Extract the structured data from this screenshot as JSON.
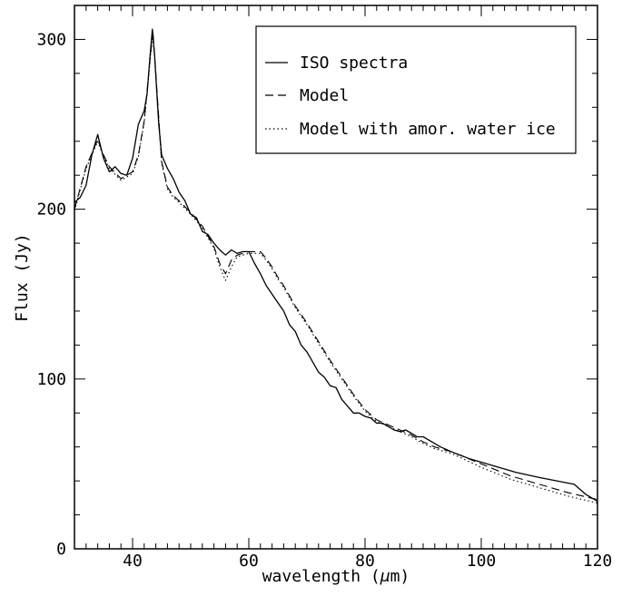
{
  "chart_data": {
    "type": "line",
    "title": "",
    "xlabel_text": "wavelength (",
    "xlabel_symbol": "μ",
    "xlabel_unit": "m)",
    "ylabel": "Flux (Jy)",
    "xlim": [
      30,
      120
    ],
    "ylim": [
      0,
      320
    ],
    "x_ticks": [
      "40",
      "60",
      "80",
      "100",
      "120"
    ],
    "y_ticks": [
      "0",
      "100",
      "200",
      "300"
    ],
    "grid": false,
    "legend_position": "top-right",
    "series": [
      {
        "name": "ISO spectra",
        "style": "solid",
        "x": [
          30,
          31,
          32,
          33,
          34,
          35,
          36,
          37,
          38,
          39,
          40,
          41,
          42,
          42.5,
          43,
          43.4,
          43.8,
          44.5,
          45,
          46,
          47,
          48,
          49,
          50,
          51,
          52,
          53,
          54,
          55,
          56,
          57,
          58,
          59,
          60,
          61,
          62,
          63,
          64,
          65,
          66,
          67,
          68,
          69,
          70,
          71,
          72,
          73,
          74,
          75,
          76,
          77,
          78,
          79,
          80,
          81,
          82,
          83,
          84,
          85,
          86,
          87,
          88,
          89,
          90,
          91,
          92,
          93,
          95,
          98,
          100,
          103,
          106,
          110,
          113,
          116,
          117,
          118,
          120
        ],
        "y": [
          204,
          207,
          214,
          232,
          244,
          230,
          222,
          225,
          221,
          220,
          230,
          250,
          258,
          268,
          290,
          306,
          290,
          250,
          232,
          224,
          218,
          210,
          205,
          197,
          195,
          187,
          185,
          180,
          176,
          173,
          176,
          174,
          175,
          175,
          168,
          162,
          155,
          150,
          145,
          140,
          132,
          128,
          120,
          116,
          110,
          104,
          101,
          96,
          95,
          88,
          84,
          80,
          80,
          78,
          77,
          74,
          74,
          72,
          70,
          69,
          70,
          68,
          66,
          66,
          64,
          62,
          60,
          57,
          53,
          51,
          48,
          45,
          42,
          40,
          38,
          35,
          32,
          28
        ]
      },
      {
        "name": "Model",
        "style": "dashed",
        "x": [
          30,
          32,
          34,
          35,
          36,
          38,
          40,
          41,
          42,
          43,
          43.5,
          44,
          45,
          46,
          47,
          48,
          50,
          52,
          54,
          55,
          56,
          57,
          58,
          60,
          61,
          62,
          63,
          64,
          65,
          66,
          68,
          70,
          72,
          74,
          76,
          78,
          80,
          82,
          84,
          86,
          88,
          90,
          92,
          95,
          100,
          105,
          110,
          115,
          120
        ],
        "y": [
          200,
          225,
          241,
          232,
          225,
          218,
          222,
          232,
          252,
          288,
          305,
          280,
          228,
          213,
          208,
          205,
          198,
          190,
          178,
          168,
          162,
          170,
          173,
          175,
          175,
          175,
          171,
          166,
          160,
          155,
          143,
          133,
          122,
          111,
          101,
          91,
          82,
          76,
          73,
          70,
          67,
          63,
          60,
          57,
          50,
          43,
          38,
          33,
          29
        ]
      },
      {
        "name": "Model with amor. water ice",
        "style": "dotted",
        "x": [
          30,
          32,
          34,
          35,
          36,
          38,
          40,
          41,
          42,
          43,
          43.5,
          44,
          45,
          46,
          47,
          48,
          50,
          52,
          54,
          55,
          56,
          57,
          58,
          60,
          61,
          62,
          63,
          64,
          65,
          66,
          68,
          70,
          72,
          74,
          76,
          78,
          80,
          82,
          84,
          86,
          88,
          90,
          92,
          95,
          100,
          105,
          110,
          115,
          120
        ],
        "y": [
          199,
          224,
          240,
          231,
          224,
          217,
          221,
          231,
          251,
          287,
          304,
          279,
          227,
          212,
          207,
          204,
          197,
          189,
          177,
          166,
          158,
          166,
          172,
          174,
          174,
          174,
          170,
          165,
          159,
          154,
          142,
          132,
          121,
          110,
          100,
          90,
          81,
          75,
          72,
          69,
          66,
          62,
          59,
          56,
          48,
          41,
          36,
          31,
          27
        ]
      }
    ]
  }
}
